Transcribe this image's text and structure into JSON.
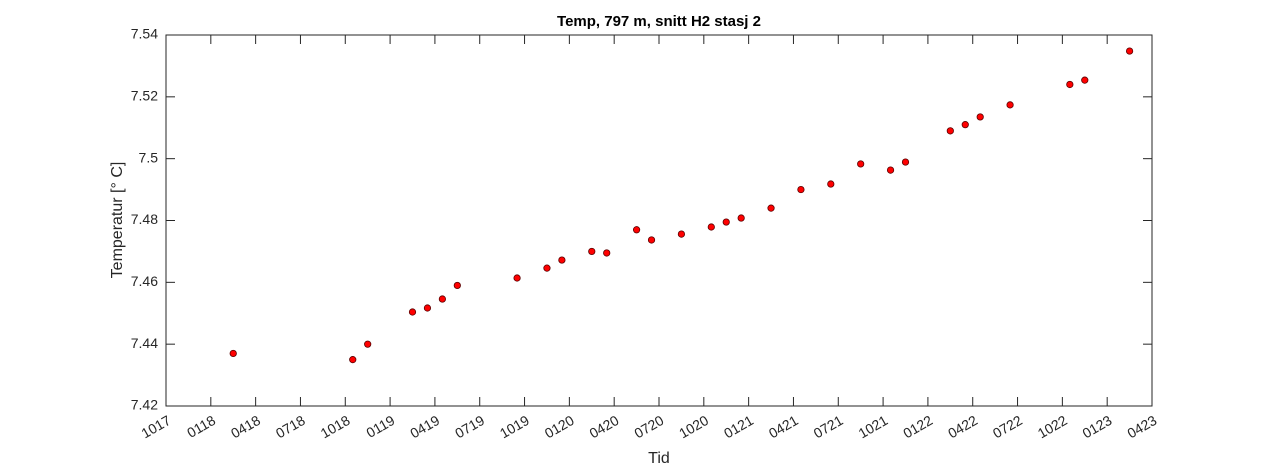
{
  "chart_data": {
    "type": "scatter",
    "title": "Temp, 797 m, snitt H2 stasj 2",
    "x_label": "Tid",
    "y_label": "Temperatur [° C]",
    "series": [
      {
        "name": "Temp",
        "color": "#ff0000",
        "x": [
          "2018-02",
          "2018-10",
          "2018-11",
          "2019-02",
          "2019-03",
          "2019-04",
          "2019-05",
          "2019-09",
          "2019-11",
          "2019-12",
          "2020-02",
          "2020-03",
          "2020-05",
          "2020-06",
          "2020-08",
          "2020-10",
          "2020-11",
          "2020-12",
          "2021-02",
          "2021-04",
          "2021-06",
          "2021-08",
          "2021-10",
          "2021-11",
          "2022-02",
          "2022-03",
          "2022-04",
          "2022-06",
          "2022-10",
          "2022-11",
          "2023-02"
        ],
        "values": [
          7.437,
          7.435,
          7.44,
          7.4504,
          7.4517,
          7.4546,
          7.459,
          7.4614,
          7.4646,
          7.4672,
          7.47,
          7.4695,
          7.477,
          7.4737,
          7.4756,
          7.4779,
          7.4795,
          7.4808,
          7.484,
          7.49,
          7.4918,
          7.4983,
          7.4963,
          7.4989,
          7.509,
          7.511,
          7.5135,
          7.5174,
          7.524,
          7.5254,
          7.5348
        ]
      }
    ],
    "xlim": [
      "2017-10",
      "2023-04"
    ],
    "xticks": [
      {
        "value": "2017-10",
        "label": "1017"
      },
      {
        "value": "2018-01",
        "label": "0118"
      },
      {
        "value": "2018-04",
        "label": "0418"
      },
      {
        "value": "2018-07",
        "label": "0718"
      },
      {
        "value": "2018-10",
        "label": "1018"
      },
      {
        "value": "2019-01",
        "label": "0119"
      },
      {
        "value": "2019-04",
        "label": "0419"
      },
      {
        "value": "2019-07",
        "label": "0719"
      },
      {
        "value": "2019-10",
        "label": "1019"
      },
      {
        "value": "2020-01",
        "label": "0120"
      },
      {
        "value": "2020-04",
        "label": "0420"
      },
      {
        "value": "2020-07",
        "label": "0720"
      },
      {
        "value": "2020-10",
        "label": "1020"
      },
      {
        "value": "2021-01",
        "label": "0121"
      },
      {
        "value": "2021-04",
        "label": "0421"
      },
      {
        "value": "2021-07",
        "label": "0721"
      },
      {
        "value": "2021-10",
        "label": "1021"
      },
      {
        "value": "2022-01",
        "label": "0122"
      },
      {
        "value": "2022-04",
        "label": "0422"
      },
      {
        "value": "2022-07",
        "label": "0722"
      },
      {
        "value": "2022-10",
        "label": "1022"
      },
      {
        "value": "2023-01",
        "label": "0123"
      },
      {
        "value": "2023-04",
        "label": "0423"
      }
    ],
    "ylim": [
      7.42,
      7.54
    ],
    "yticks": [
      7.42,
      7.44,
      7.46,
      7.48,
      7.5,
      7.52,
      7.54
    ],
    "grid": false
  }
}
